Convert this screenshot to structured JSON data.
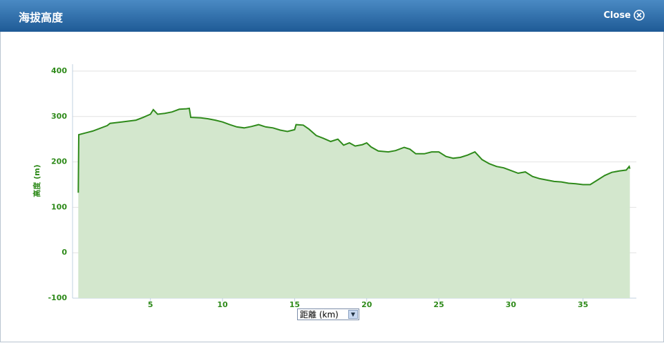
{
  "header": {
    "title": "海拔高度",
    "close": "Close"
  },
  "chart_data": {
    "type": "area",
    "ylabel": "高度 (m)",
    "xlabel": "距離 (km)",
    "x": [
      0,
      0.03,
      1,
      2,
      2.2,
      3,
      4,
      4.5,
      5,
      5.2,
      5.5,
      6,
      6.5,
      7,
      7.5,
      7.7,
      7.8,
      8.5,
      9,
      9.5,
      10,
      10.5,
      11,
      11.5,
      12,
      12.5,
      13,
      13.5,
      14,
      14.5,
      15,
      15.1,
      15.6,
      16,
      16.5,
      17,
      17.5,
      18,
      18.4,
      18.8,
      19.2,
      19.7,
      20,
      20.3,
      20.8,
      21.5,
      22,
      22.6,
      23,
      23.4,
      24,
      24.5,
      25,
      25.5,
      26,
      26.5,
      27,
      27.5,
      28,
      28.5,
      29,
      29.5,
      30,
      30.5,
      31,
      31.5,
      32,
      32.5,
      33,
      33.5,
      34,
      34.5,
      35,
      35.5,
      36,
      36.5,
      37,
      37.5,
      38,
      38.2,
      38.25
    ],
    "values": [
      132,
      260,
      268,
      280,
      285,
      288,
      292,
      298,
      305,
      315,
      305,
      307,
      310,
      316,
      317,
      318,
      298,
      297,
      295,
      292,
      288,
      282,
      277,
      275,
      278,
      282,
      277,
      275,
      270,
      267,
      271,
      282,
      281,
      272,
      258,
      252,
      245,
      250,
      237,
      242,
      235,
      238,
      242,
      233,
      224,
      222,
      225,
      232,
      228,
      218,
      218,
      222,
      222,
      212,
      208,
      210,
      215,
      222,
      205,
      196,
      190,
      187,
      181,
      175,
      178,
      168,
      163,
      160,
      157,
      156,
      153,
      152,
      150,
      150,
      160,
      170,
      177,
      180,
      182,
      190,
      185
    ],
    "color": "#2e8a1a",
    "fill": "#d3e7cd",
    "xlim": [
      -0.4,
      38.7
    ],
    "xticks": [
      5,
      10,
      15,
      20,
      25,
      30,
      35
    ],
    "ylim": [
      -100,
      400
    ],
    "yticks": [
      -100,
      0,
      100,
      200,
      300,
      400
    ],
    "grid": true
  }
}
